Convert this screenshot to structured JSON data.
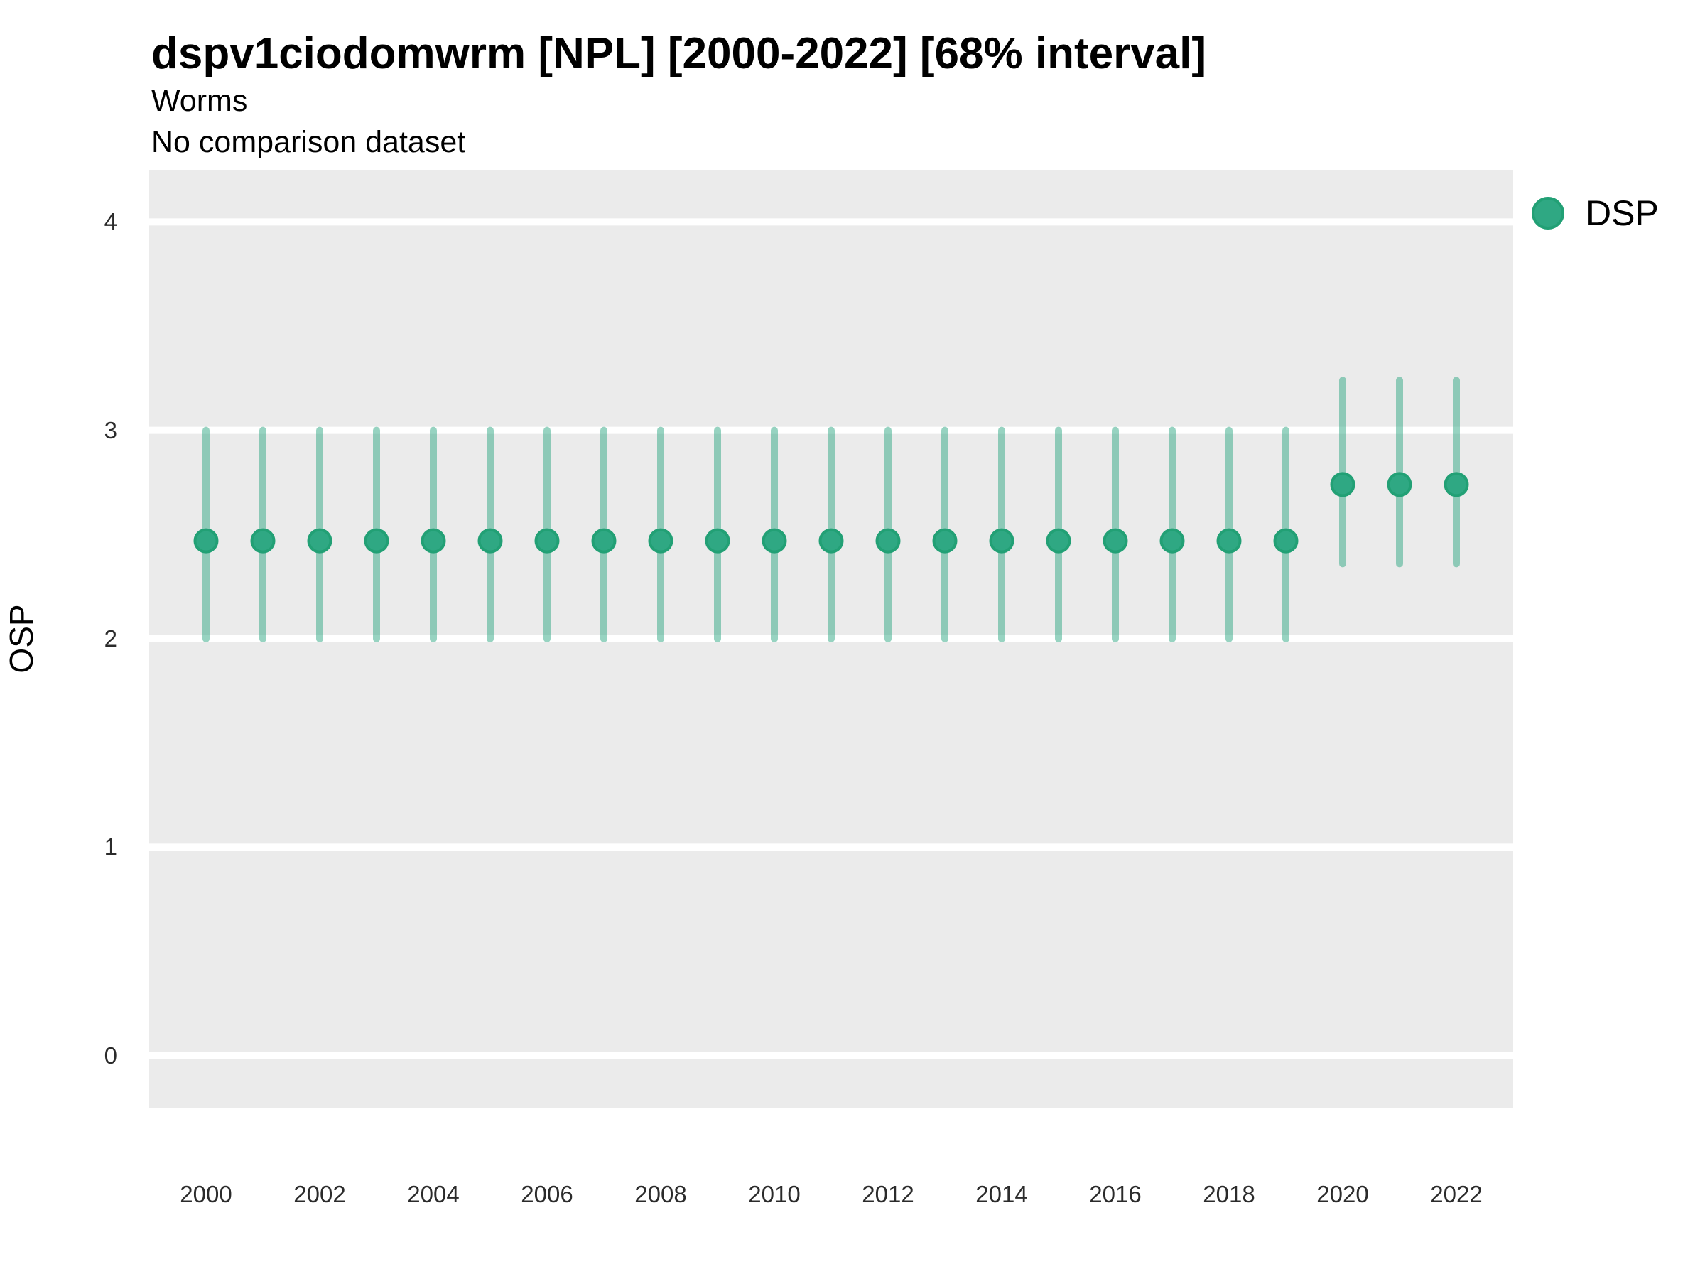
{
  "header": {
    "title": "dspv1ciodomwrm [NPL] [2000-2022] [68% interval]",
    "subtitle1": "Worms",
    "subtitle2": "No comparison dataset"
  },
  "legend": {
    "label": "DSP"
  },
  "chart_data": {
    "type": "pointrange",
    "title": "dspv1ciodomwrm [NPL] [2000-2022] [68% interval]",
    "subtitle": [
      "Worms",
      "No comparison dataset"
    ],
    "xlabel": "",
    "ylabel": "OSP",
    "legend_position": "right",
    "grid": "major-horizontal-white-on-gray",
    "xlim": [
      1999,
      2023
    ],
    "ylim": [
      -0.25,
      4.25
    ],
    "xticks": [
      2000,
      2002,
      2004,
      2006,
      2008,
      2010,
      2012,
      2014,
      2016,
      2018,
      2020,
      2022
    ],
    "yticks": [
      0,
      1,
      2,
      3,
      4
    ],
    "series": [
      {
        "name": "DSP",
        "x": [
          2000,
          2001,
          2002,
          2003,
          2004,
          2005,
          2006,
          2007,
          2008,
          2009,
          2010,
          2011,
          2012,
          2013,
          2014,
          2015,
          2016,
          2017,
          2018,
          2019,
          2020,
          2021,
          2022
        ],
        "mid": [
          2.47,
          2.47,
          2.47,
          2.47,
          2.47,
          2.47,
          2.47,
          2.47,
          2.47,
          2.47,
          2.47,
          2.47,
          2.47,
          2.47,
          2.47,
          2.47,
          2.47,
          2.47,
          2.47,
          2.47,
          2.74,
          2.74,
          2.74
        ],
        "lower": [
          2.0,
          2.0,
          2.0,
          2.0,
          2.0,
          2.0,
          2.0,
          2.0,
          2.0,
          2.0,
          2.0,
          2.0,
          2.0,
          2.0,
          2.0,
          2.0,
          2.0,
          2.0,
          2.0,
          2.0,
          2.36,
          2.36,
          2.36
        ],
        "upper": [
          3.0,
          3.0,
          3.0,
          3.0,
          3.0,
          3.0,
          3.0,
          3.0,
          3.0,
          3.0,
          3.0,
          3.0,
          3.0,
          3.0,
          3.0,
          3.0,
          3.0,
          3.0,
          3.0,
          3.0,
          3.24,
          3.24,
          3.24
        ]
      }
    ],
    "interval_level": "68%"
  },
  "colors": {
    "point_fill": "#2FA883",
    "point_stroke": "#22A075",
    "interval_line": "#2FA883",
    "interval_alpha": 0.5,
    "panel_bg": "#EBEBEB",
    "gridline": "#FFFFFF"
  }
}
